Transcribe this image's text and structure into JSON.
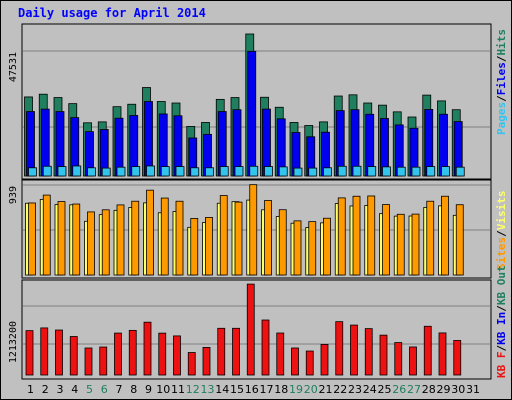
{
  "title": "Daily usage for April 2014",
  "colors": {
    "hits": "#1f7f5f",
    "files": "#0000ee",
    "pages": "#33c4ee",
    "visits": "#ffff66",
    "sites": "#ff9900",
    "kbin": "#1f7f5f",
    "kbout": "#0000ee",
    "kbf": "#ee1111",
    "weekend": "#1f7f5f",
    "weekday": "#000000",
    "plotbg": "#c0c0c0"
  },
  "chart_data": [
    {
      "type": "bar",
      "panel": "hits-files-pages",
      "categories": [
        "1",
        "2",
        "3",
        "4",
        "5",
        "6",
        "7",
        "8",
        "9",
        "10",
        "11",
        "12",
        "13",
        "14",
        "15",
        "16",
        "17",
        "18",
        "19",
        "20",
        "21",
        "22",
        "23",
        "24",
        "25",
        "26",
        "27",
        "28",
        "29",
        "30",
        "31"
      ],
      "y_tick_label": "47531",
      "legend": [
        "Pages",
        "Files",
        "Hits"
      ],
      "series": [
        {
          "name": "Hits",
          "values": [
            26000,
            26900,
            25800,
            23800,
            17500,
            17800,
            22800,
            23600,
            29100,
            24500,
            24000,
            16300,
            17600,
            25200,
            25800,
            46700,
            25900,
            22600,
            17600,
            16600,
            17800,
            26300,
            26700,
            24000,
            23300,
            21100,
            19400,
            26600,
            24700,
            21800,
            0
          ]
        },
        {
          "name": "Files",
          "values": [
            21200,
            22000,
            21200,
            19200,
            14600,
            15300,
            19000,
            19900,
            24500,
            20400,
            19800,
            12500,
            13700,
            21200,
            21800,
            41000,
            22000,
            18800,
            14300,
            12900,
            14400,
            21500,
            21800,
            20300,
            18900,
            16800,
            15700,
            21900,
            20300,
            17900,
            0
          ]
        },
        {
          "name": "Pages",
          "values": [
            2700,
            3200,
            3100,
            3300,
            2700,
            2600,
            2900,
            3100,
            3300,
            3100,
            3100,
            2700,
            2700,
            3100,
            3100,
            3200,
            3100,
            3000,
            2600,
            2600,
            2700,
            3200,
            3200,
            3100,
            3000,
            2900,
            2900,
            3100,
            3100,
            2900,
            0
          ]
        }
      ]
    },
    {
      "type": "bar",
      "panel": "visits-sites",
      "categories": [
        "1",
        "2",
        "3",
        "4",
        "5",
        "6",
        "7",
        "8",
        "9",
        "10",
        "11",
        "12",
        "13",
        "14",
        "15",
        "16",
        "17",
        "18",
        "19",
        "20",
        "21",
        "22",
        "23",
        "24",
        "25",
        "26",
        "27",
        "28",
        "29",
        "30",
        "31"
      ],
      "y_tick_label": "939",
      "legend": [
        "Sites",
        "Visits"
      ],
      "series": [
        {
          "name": "Visits",
          "values": [
            819,
            862,
            804,
            801,
            613,
            689,
            738,
            771,
            823,
            710,
            724,
            544,
            598,
            819,
            837,
            855,
            744,
            667,
            591,
            541,
            595,
            815,
            788,
            794,
            700,
            672,
            673,
            771,
            789,
            681,
            0
          ]
        },
        {
          "name": "Sites",
          "values": [
            822,
            912,
            838,
            810,
            720,
            744,
            800,
            842,
            968,
            878,
            842,
            646,
            657,
            907,
            832,
            1031,
            850,
            745,
            618,
            609,
            648,
            880,
            899,
            902,
            804,
            693,
            695,
            842,
            899,
            802,
            0
          ]
        }
      ]
    },
    {
      "type": "bar",
      "panel": "kb",
      "categories": [
        "1",
        "2",
        "3",
        "4",
        "5",
        "6",
        "7",
        "8",
        "9",
        "10",
        "11",
        "12",
        "13",
        "14",
        "15",
        "16",
        "17",
        "18",
        "19",
        "20",
        "21",
        "22",
        "23",
        "24",
        "25",
        "26",
        "27",
        "28",
        "29",
        "30",
        "31"
      ],
      "y_tick_label": "1213200",
      "legend": [
        "KB F",
        "KB In",
        "KB Out"
      ],
      "series": [
        {
          "name": "KB F",
          "values": [
            815000,
            865000,
            826000,
            707000,
            496000,
            514000,
            770000,
            820000,
            970000,
            769000,
            718000,
            413000,
            507000,
            858000,
            858000,
            1670000,
            1010000,
            771000,
            496000,
            440000,
            562000,
            980000,
            917000,
            852000,
            732000,
            596000,
            515000,
            895000,
            773000,
            634000,
            0
          ]
        },
        {
          "name": "KB In",
          "values": [
            0,
            0,
            0,
            0,
            0,
            0,
            0,
            0,
            0,
            0,
            0,
            0,
            0,
            0,
            0,
            0,
            0,
            0,
            0,
            0,
            0,
            0,
            0,
            0,
            0,
            0,
            0,
            0,
            0,
            0,
            0
          ]
        },
        {
          "name": "KB Out",
          "values": [
            0,
            0,
            0,
            0,
            0,
            0,
            0,
            0,
            0,
            0,
            0,
            0,
            0,
            0,
            0,
            0,
            0,
            0,
            0,
            0,
            0,
            0,
            0,
            0,
            0,
            0,
            0,
            0,
            0,
            0,
            0
          ]
        }
      ]
    }
  ],
  "weekend_days": [
    5,
    6,
    12,
    13,
    19,
    20,
    26,
    27
  ]
}
